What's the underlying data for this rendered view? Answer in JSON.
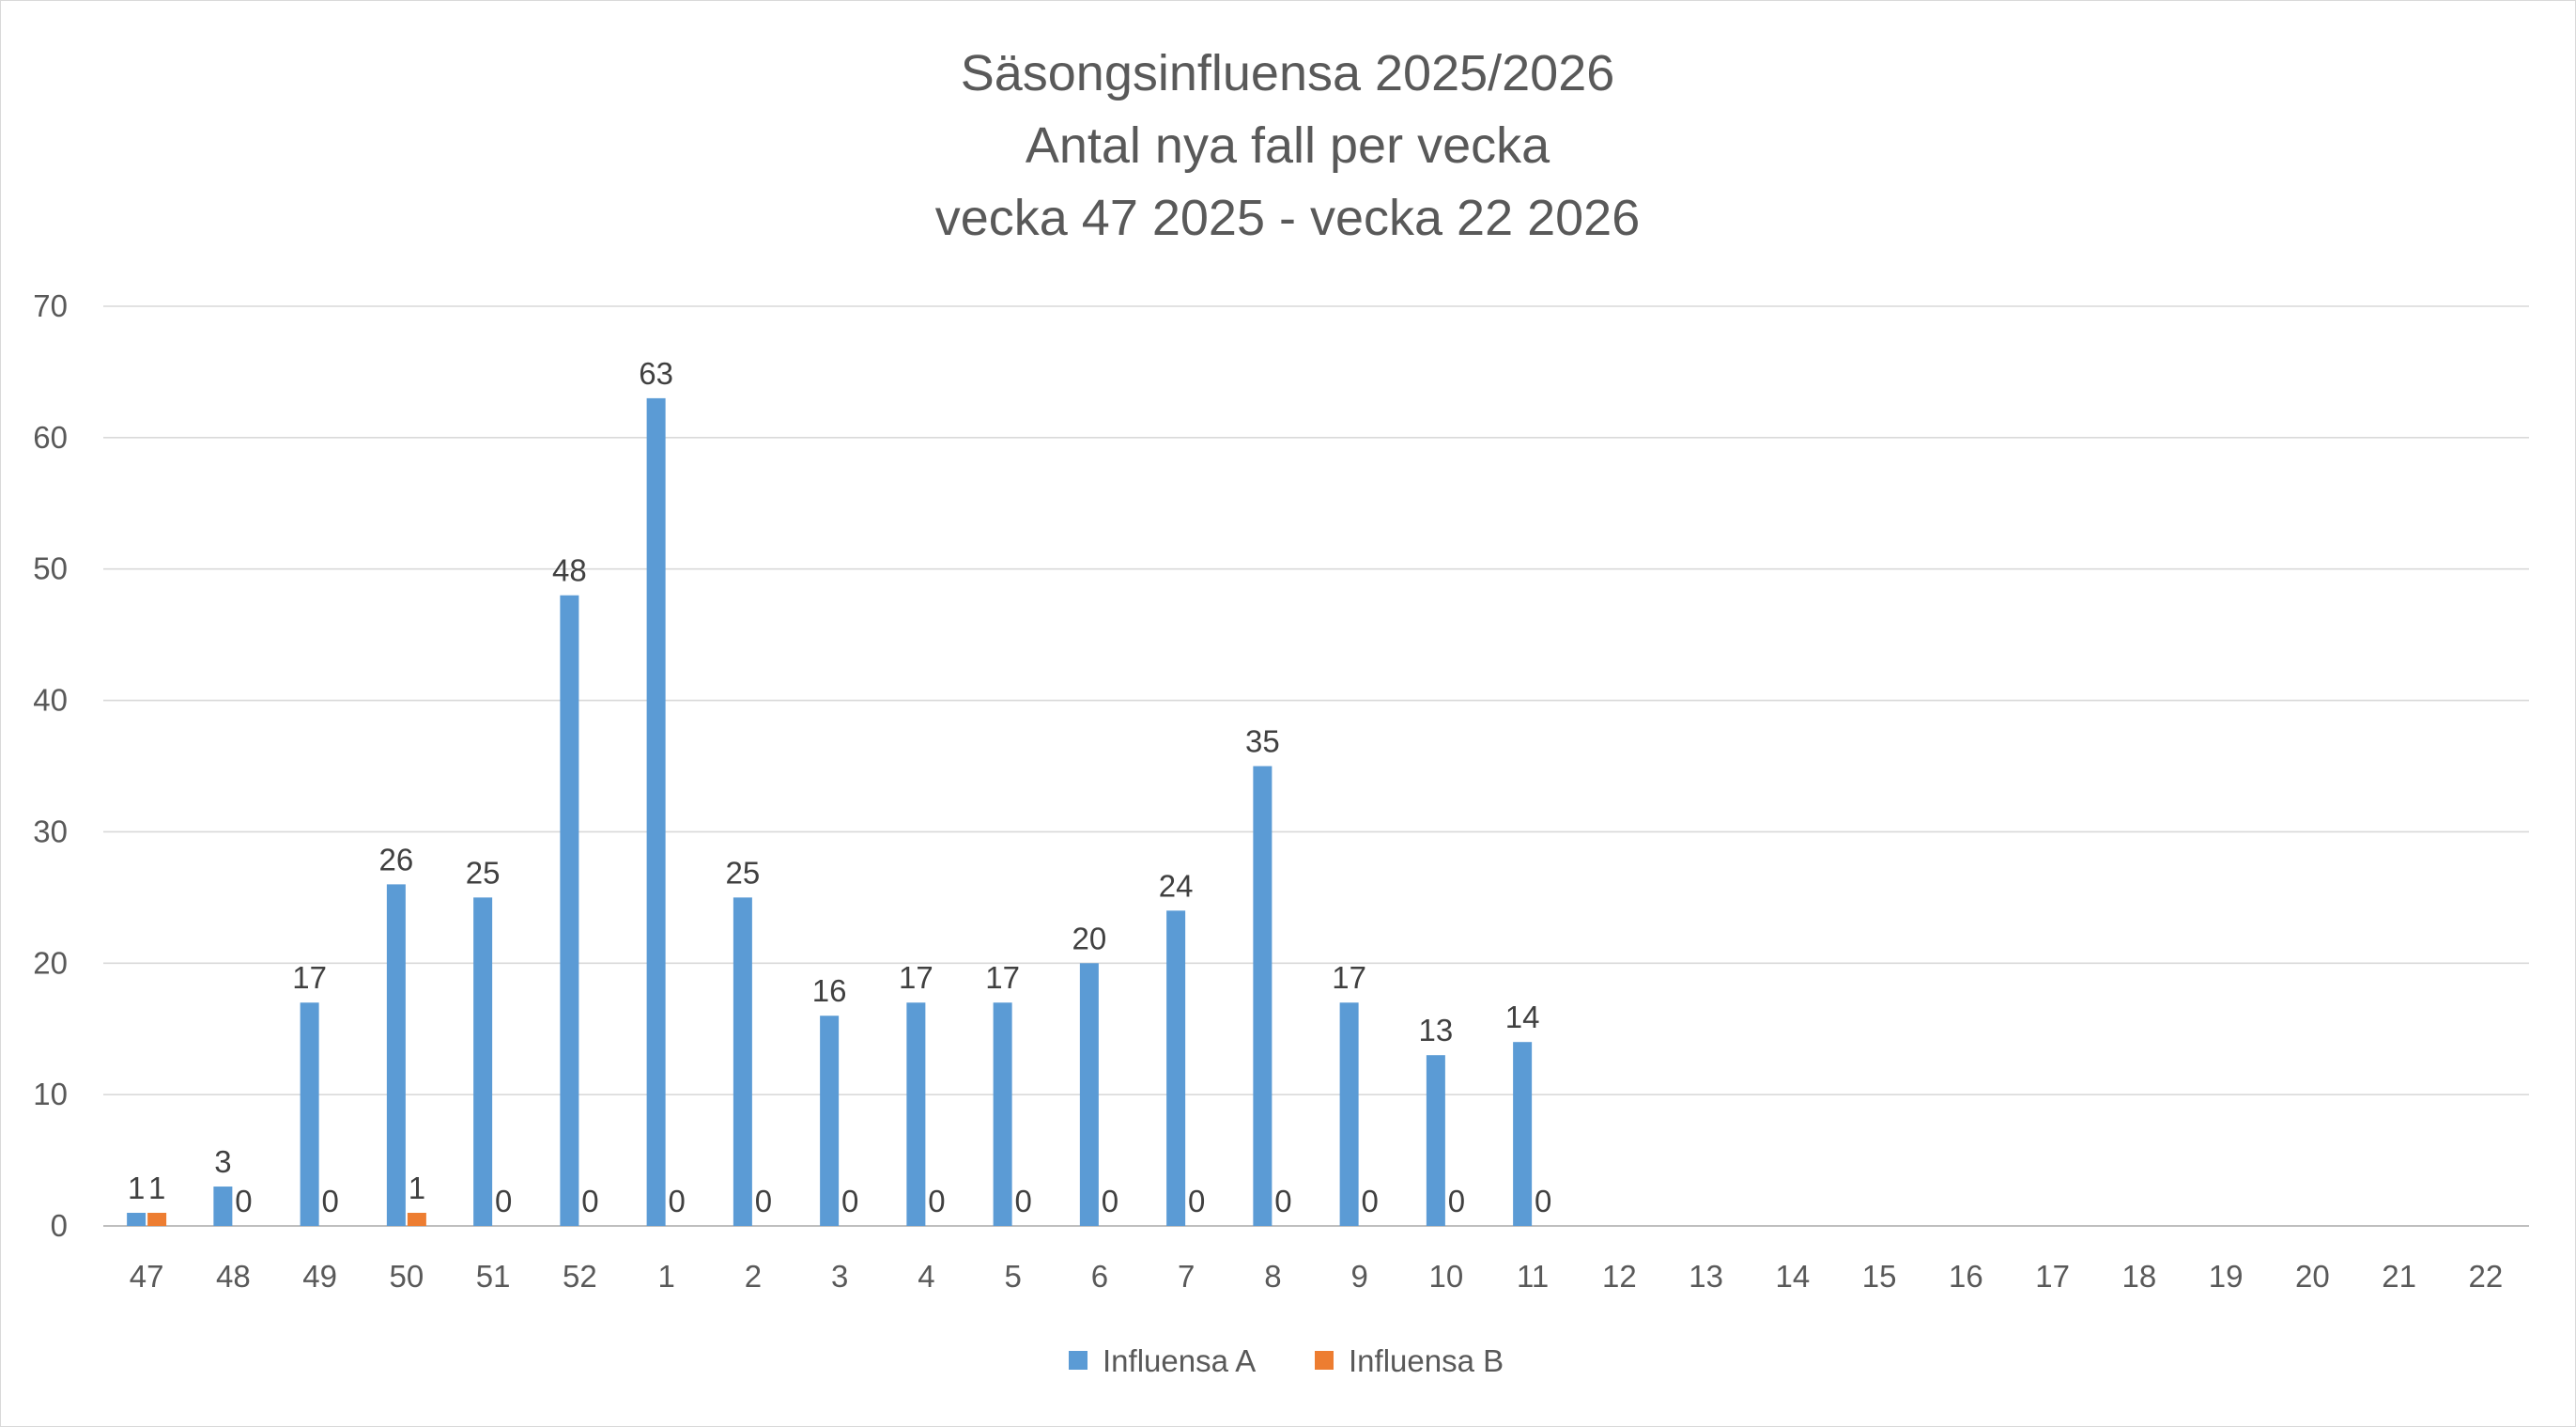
{
  "chart_data": {
    "type": "bar",
    "title_lines": [
      "Säsongsinfluensa 2025/2026",
      "Antal nya fall per vecka",
      "vecka 47 2025 - vecka 22 2026"
    ],
    "xlabel": "",
    "ylabel": "",
    "ylim": [
      0,
      70
    ],
    "yticks": [
      0,
      10,
      20,
      30,
      40,
      50,
      60,
      70
    ],
    "grid": true,
    "legend_position": "bottom",
    "categories": [
      "47",
      "48",
      "49",
      "50",
      "51",
      "52",
      "1",
      "2",
      "3",
      "4",
      "5",
      "6",
      "7",
      "8",
      "9",
      "10",
      "11",
      "12",
      "13",
      "14",
      "15",
      "16",
      "17",
      "18",
      "19",
      "20",
      "21",
      "22"
    ],
    "series": [
      {
        "name": "Influensa A",
        "color": "#5b9bd5",
        "values": [
          1,
          3,
          17,
          26,
          25,
          48,
          63,
          25,
          16,
          17,
          17,
          20,
          24,
          35,
          17,
          13,
          14,
          null,
          null,
          null,
          null,
          null,
          null,
          null,
          null,
          null,
          null,
          null
        ]
      },
      {
        "name": "Influensa B",
        "color": "#ed7d31",
        "values": [
          1,
          0,
          0,
          1,
          0,
          0,
          0,
          0,
          0,
          0,
          0,
          0,
          0,
          0,
          0,
          0,
          0,
          null,
          null,
          null,
          null,
          null,
          null,
          null,
          null,
          null,
          null,
          null
        ]
      }
    ]
  }
}
